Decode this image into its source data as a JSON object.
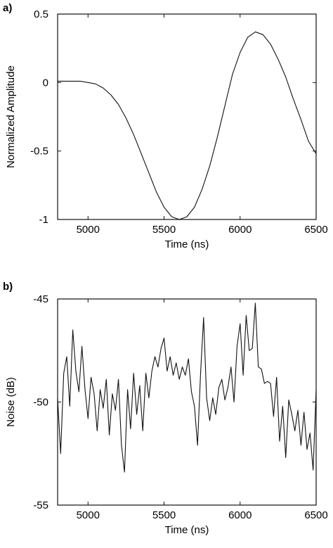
{
  "chart_data": [
    {
      "panel_label": "a)",
      "type": "line",
      "xlabel": "Time (ns)",
      "ylabel": "Normalized Amplitude",
      "xlim": [
        4800,
        6500
      ],
      "ylim": [
        -1.0,
        0.5
      ],
      "xticks": [
        "5000",
        "5500",
        "6000",
        "6500"
      ],
      "yticks": [
        "0.5",
        "0",
        "-0.5",
        "-1"
      ],
      "xtick_values": [
        5000,
        5500,
        6000,
        6500
      ],
      "ytick_values": [
        0.5,
        0,
        -0.5,
        -1
      ],
      "grid": false,
      "line_color": "#111111",
      "series": [
        {
          "x": [
            4800,
            4850,
            4900,
            4950,
            5000,
            5050,
            5100,
            5150,
            5200,
            5250,
            5300,
            5350,
            5400,
            5450,
            5500,
            5550,
            5600,
            5650,
            5700,
            5750,
            5800,
            5850,
            5900,
            5950,
            6000,
            6050,
            6100,
            6150,
            6200,
            6250,
            6300,
            6350,
            6400,
            6450,
            6500
          ],
          "y": [
            0.01,
            0.01,
            0.01,
            0.01,
            0.0,
            -0.01,
            -0.04,
            -0.09,
            -0.16,
            -0.26,
            -0.38,
            -0.52,
            -0.66,
            -0.8,
            -0.91,
            -0.98,
            -1.0,
            -0.98,
            -0.91,
            -0.78,
            -0.61,
            -0.4,
            -0.17,
            0.06,
            0.22,
            0.33,
            0.37,
            0.35,
            0.28,
            0.17,
            0.04,
            -0.12,
            -0.27,
            -0.43,
            -0.52
          ]
        }
      ]
    },
    {
      "panel_label": "b)",
      "type": "line",
      "xlabel": "Time (ns)",
      "ylabel": "Noise (dB)",
      "xlim": [
        4800,
        6500
      ],
      "ylim": [
        -55,
        -45
      ],
      "xticks": [
        "5000",
        "5500",
        "6000",
        "6500"
      ],
      "yticks": [
        "-45",
        "-50",
        "-55"
      ],
      "xtick_values": [
        5000,
        5500,
        6000,
        6500
      ],
      "ytick_values": [
        -45,
        -50,
        -55
      ],
      "grid": false,
      "line_color": "#111111",
      "series": [
        {
          "x": [
            4800,
            4820,
            4840,
            4860,
            4880,
            4900,
            4920,
            4940,
            4960,
            4980,
            5000,
            5020,
            5040,
            5060,
            5080,
            5100,
            5120,
            5140,
            5160,
            5180,
            5200,
            5220,
            5240,
            5260,
            5280,
            5300,
            5320,
            5340,
            5360,
            5380,
            5400,
            5420,
            5440,
            5460,
            5480,
            5500,
            5520,
            5540,
            5560,
            5580,
            5600,
            5620,
            5640,
            5660,
            5680,
            5700,
            5720,
            5740,
            5760,
            5780,
            5800,
            5820,
            5840,
            5860,
            5880,
            5900,
            5920,
            5940,
            5960,
            5980,
            6000,
            6020,
            6040,
            6060,
            6080,
            6100,
            6120,
            6140,
            6160,
            6180,
            6200,
            6220,
            6240,
            6260,
            6280,
            6300,
            6320,
            6340,
            6360,
            6380,
            6400,
            6420,
            6440,
            6460,
            6480,
            6500
          ],
          "y": [
            -49.8,
            -52.5,
            -48.6,
            -47.8,
            -50.2,
            -46.5,
            -48.5,
            -49.5,
            -47.3,
            -49.4,
            -50.8,
            -48.8,
            -49.6,
            -51.4,
            -49.4,
            -50.3,
            -48.9,
            -51.6,
            -49.6,
            -50.4,
            -48.9,
            -52.1,
            -53.4,
            -49.4,
            -51.3,
            -48.6,
            -50.6,
            -49.2,
            -51.4,
            -48.6,
            -49.8,
            -48.5,
            -47.8,
            -48.3,
            -47.4,
            -46.9,
            -48.5,
            -47.8,
            -48.7,
            -48.1,
            -48.9,
            -48.3,
            -48.7,
            -47.9,
            -49.5,
            -50.2,
            -52.1,
            -48.6,
            -45.9,
            -49.8,
            -50.9,
            -49.8,
            -50.6,
            -49.3,
            -48.9,
            -49.9,
            -49.3,
            -48.3,
            -50.0,
            -47.3,
            -46.2,
            -48.7,
            -45.8,
            -47.5,
            -47.4,
            -45.2,
            -48.3,
            -48.4,
            -49.1,
            -49.0,
            -49.1,
            -50.7,
            -48.8,
            -51.9,
            -50.2,
            -52.7,
            -49.9,
            -50.6,
            -51.4,
            -50.4,
            -52.1,
            -50.5,
            -52.3,
            -51.5,
            -53.3,
            -49.4
          ]
        }
      ]
    }
  ]
}
